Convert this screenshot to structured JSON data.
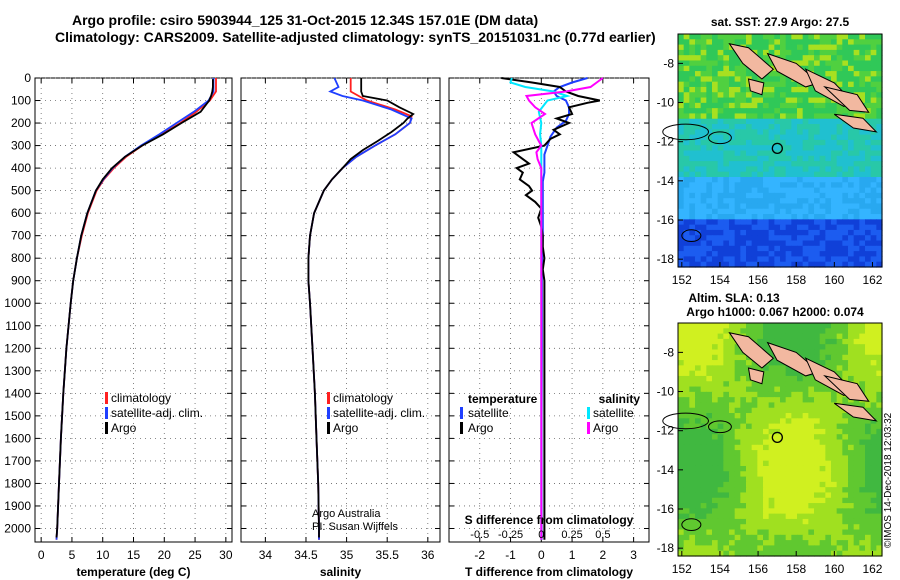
{
  "header": {
    "line1": "Argo profile: csiro 5903944_125 31-Oct-2015 12.34S 157.01E (DM data)",
    "line2": "Climatology: CARS2009. Satellite-adjusted climatology: synTS_20151031.nc (0.77d earlier)"
  },
  "credit": "©IMOS 14-Dec-2018 12:03:32",
  "colors": {
    "climatology": "#ff2020",
    "satellite": "#1f3fff",
    "argo": "#000000",
    "sat_salinity": "#00e8ff",
    "sat_argo_salinity": "#ff00ff",
    "land": "#f2b8a0"
  },
  "chart_data": [
    {
      "type": "line",
      "id": "temperature",
      "xlabel": "temperature (deg C)",
      "xlim": [
        -1,
        31
      ],
      "xticks": [
        0,
        5,
        10,
        15,
        20,
        25,
        30
      ],
      "ylim": [
        0,
        2060
      ],
      "yticks": [
        0,
        100,
        200,
        300,
        400,
        500,
        600,
        700,
        800,
        900,
        1000,
        1100,
        1200,
        1300,
        1400,
        1500,
        1600,
        1700,
        1800,
        1900,
        2000
      ],
      "legend": [
        "climatology",
        "satellite-adj. clim.",
        "Argo"
      ],
      "series": [
        {
          "name": "climatology",
          "color": "#ff2020",
          "depth": [
            0,
            60,
            100,
            150,
            200,
            250,
            300,
            350,
            400,
            450,
            500,
            600,
            700,
            800,
            900,
            1000,
            1200,
            1400,
            1600,
            1800,
            2000,
            2050
          ],
          "values": [
            28.4,
            28.4,
            27.4,
            25.2,
            22.6,
            19.6,
            16.4,
            13.8,
            11.8,
            10.2,
            9.0,
            7.6,
            6.6,
            5.8,
            5.2,
            4.8,
            4.1,
            3.6,
            3.2,
            2.9,
            2.6,
            2.5
          ]
        },
        {
          "name": "satellite-adj. clim.",
          "color": "#1f3fff",
          "depth": [
            0,
            60,
            100,
            150,
            200,
            250,
            300,
            350,
            400,
            450,
            500,
            600,
            700,
            800,
            900,
            1000,
            1200,
            1400,
            1600,
            1800,
            2000,
            2050
          ],
          "values": [
            28.0,
            28.0,
            27.2,
            24.8,
            22.0,
            19.2,
            16.2,
            13.6,
            11.6,
            10.1,
            8.9,
            7.5,
            6.5,
            5.8,
            5.2,
            4.8,
            4.1,
            3.6,
            3.2,
            2.9,
            2.6,
            2.5
          ]
        },
        {
          "name": "Argo",
          "color": "#000000",
          "depth": [
            5,
            40,
            60,
            80,
            100,
            150,
            200,
            250,
            300,
            350,
            400,
            450,
            500,
            600,
            700,
            800,
            900,
            1000,
            1200,
            1400,
            1600,
            1800,
            2000,
            2040
          ],
          "values": [
            27.9,
            27.9,
            27.8,
            27.6,
            27.3,
            25.9,
            22.8,
            19.8,
            16.4,
            13.6,
            11.5,
            10.0,
            8.9,
            7.5,
            6.5,
            5.8,
            5.2,
            4.8,
            4.1,
            3.6,
            3.2,
            2.9,
            2.6,
            2.5
          ]
        }
      ]
    },
    {
      "type": "line",
      "id": "salinity",
      "xlabel": "salinity",
      "xlim": [
        33.7,
        36.15
      ],
      "xticks": [
        34,
        34.5,
        35,
        35.5,
        36
      ],
      "xticklabels": [
        "34",
        "34.5",
        "35",
        "35.5",
        "36"
      ],
      "ylim": [
        0,
        2060
      ],
      "legend": [
        "climatology",
        "satellite-adj. clim.",
        "Argo"
      ],
      "annotation": [
        "Argo Australia",
        "PI: Susan Wijffels"
      ],
      "series": [
        {
          "name": "climatology",
          "color": "#ff2020",
          "depth": [
            0,
            60,
            100,
            140,
            170,
            200,
            250,
            300,
            350,
            400,
            450,
            500,
            600,
            700,
            800,
            900,
            1000,
            1200,
            1400,
            1600,
            1800,
            2000,
            2050
          ],
          "values": [
            35.05,
            35.05,
            35.25,
            35.6,
            35.8,
            35.78,
            35.6,
            35.35,
            35.12,
            34.95,
            34.82,
            34.72,
            34.6,
            34.55,
            34.53,
            34.53,
            34.55,
            34.58,
            34.61,
            34.63,
            34.65,
            34.66,
            34.66
          ]
        },
        {
          "name": "satellite-adj. clim.",
          "color": "#1f3fff",
          "depth": [
            0,
            40,
            60,
            80,
            100,
            140,
            180,
            200,
            250,
            300,
            350,
            400,
            450,
            500,
            600,
            700,
            800,
            900,
            1000,
            1200,
            1400,
            1600,
            1800,
            2000,
            2050
          ],
          "values": [
            34.85,
            34.9,
            34.8,
            34.95,
            35.2,
            35.55,
            35.8,
            35.78,
            35.6,
            35.35,
            35.12,
            34.95,
            34.82,
            34.72,
            34.6,
            34.55,
            34.53,
            34.53,
            34.55,
            34.58,
            34.61,
            34.63,
            34.65,
            34.66,
            34.66
          ]
        },
        {
          "name": "Argo",
          "color": "#000000",
          "depth": [
            0,
            20,
            40,
            60,
            80,
            100,
            130,
            160,
            180,
            200,
            240,
            280,
            320,
            360,
            400,
            450,
            500,
            600,
            700,
            800,
            900,
            1000,
            1200,
            1400,
            1600,
            1800,
            2000,
            2040
          ],
          "values": [
            35.18,
            35.18,
            35.18,
            35.18,
            35.2,
            35.5,
            35.65,
            35.82,
            35.75,
            35.7,
            35.55,
            35.38,
            35.2,
            35.05,
            34.95,
            34.82,
            34.72,
            34.6,
            34.55,
            34.53,
            34.53,
            34.55,
            34.58,
            34.61,
            34.63,
            34.65,
            34.66,
            34.66
          ]
        }
      ]
    },
    {
      "type": "line",
      "id": "difference",
      "xlabel": "T difference from climatology",
      "xlabel2": "S difference from climatology",
      "xlim": [
        -3,
        3.5
      ],
      "xticks": [
        -2,
        -1,
        0,
        1,
        2,
        3
      ],
      "xticklabels": [
        "-2",
        "-1",
        "0",
        "1",
        "2",
        "3"
      ],
      "sticks": [
        -0.5,
        -0.25,
        0,
        0.25,
        0.5
      ],
      "sticklabels": [
        "-0.5",
        "-0.25",
        "0",
        "0.25",
        "0.5"
      ],
      "s_scale": 4,
      "ylim": [
        0,
        2060
      ],
      "legend_left_title": "temperature",
      "legend_left": [
        "satellite",
        "Argo"
      ],
      "legend_right_title": "salinity",
      "legend_right": [
        "satellite",
        "Argo"
      ],
      "series": [
        {
          "name": "T satellite",
          "color": "#1f3fff",
          "depth": [
            0,
            20,
            40,
            60,
            80,
            100,
            130,
            160,
            190,
            220,
            260,
            300,
            340,
            380,
            420,
            460,
            500,
            600,
            700,
            800,
            900,
            1000,
            1200,
            1500,
            1800,
            2050
          ],
          "values": [
            1.5,
            1.0,
            0.6,
            0.4,
            0.5,
            0.8,
            0.9,
            0.9,
            0.8,
            0.5,
            0.3,
            0.2,
            0.1,
            0.1,
            0.1,
            0.05,
            0.05,
            0.05,
            0.05,
            0.03,
            0.02,
            0.02,
            0.02,
            0.01,
            0.01,
            0.01
          ]
        },
        {
          "name": "T Argo",
          "color": "#000000",
          "depth": [
            0,
            20,
            40,
            60,
            80,
            100,
            110,
            130,
            160,
            180,
            200,
            230,
            250,
            270,
            300,
            330,
            360,
            380,
            400,
            420,
            450,
            480,
            500,
            520,
            550,
            580,
            620,
            660,
            700,
            750,
            800,
            850,
            900,
            1000,
            1200,
            1500,
            1800,
            2050
          ],
          "values": [
            -1.3,
            -0.3,
            0.6,
            0.8,
            1.2,
            1.9,
            1.5,
            0.9,
            1.0,
            0.5,
            0.9,
            0.4,
            0.6,
            0.3,
            0.1,
            -0.9,
            -0.6,
            -0.4,
            -0.8,
            -0.6,
            -0.7,
            -0.4,
            -0.3,
            -0.5,
            -0.2,
            0.0,
            -0.1,
            0.0,
            0.05,
            0.05,
            0.1,
            0.05,
            0.1,
            0.1,
            0.1,
            0.1,
            0.1,
            0.1
          ]
        },
        {
          "name": "S satellite",
          "color": "#00e8ff",
          "depth": [
            0,
            20,
            40,
            60,
            80,
            100,
            150,
            200,
            250,
            300,
            350,
            400,
            500,
            600,
            800,
            1000,
            1200,
            1500,
            1800,
            2050
          ],
          "values": [
            -0.24,
            -0.25,
            -0.13,
            0.1,
            0.21,
            0.05,
            -0.02,
            0.0,
            -0.01,
            0.0,
            0.0,
            0.0,
            0.0,
            0.0,
            0.0,
            0.0,
            0.0,
            0.0,
            0.0,
            0.0
          ]
        },
        {
          "name": "S Argo",
          "color": "#ff00ff",
          "depth": [
            0,
            20,
            40,
            60,
            80,
            100,
            130,
            160,
            200,
            250,
            280,
            300,
            330,
            360,
            400,
            450,
            500,
            600,
            700,
            800,
            900,
            1000,
            1200,
            1500,
            1800,
            2050
          ],
          "values": [
            0.5,
            0.45,
            0.4,
            0.2,
            -0.12,
            -0.1,
            -0.05,
            0.03,
            -0.08,
            -0.05,
            -0.02,
            0.0,
            -0.04,
            -0.03,
            0.0,
            0.0,
            0.0,
            0.0,
            0.0,
            0.0,
            0.0,
            0.0,
            0.0,
            0.0,
            0.0,
            0.0
          ]
        }
      ]
    },
    {
      "type": "heatmap",
      "id": "sst-map",
      "title": "sat. SST: 27.9 Argo: 27.5",
      "xticks": [
        152,
        154,
        156,
        158,
        160,
        162
      ],
      "yticks": [
        -8,
        -10,
        -12,
        -14,
        -16,
        -18
      ],
      "xlim": [
        151.8,
        162.5
      ],
      "ylim": [
        -18.4,
        -6.5
      ],
      "marker": [
        157.01,
        -12.34
      ]
    },
    {
      "type": "heatmap",
      "id": "sla-map",
      "title": "Altim. SLA: 0.13",
      "title2": "Argo h1000: 0.067 h2000: 0.074",
      "xticks": [
        152,
        154,
        156,
        158,
        160,
        162
      ],
      "yticks": [
        -8,
        -10,
        -12,
        -14,
        -16,
        -18
      ],
      "xlim": [
        151.8,
        162.5
      ],
      "ylim": [
        -18.4,
        -6.5
      ],
      "marker": [
        157.01,
        -12.34
      ]
    }
  ]
}
